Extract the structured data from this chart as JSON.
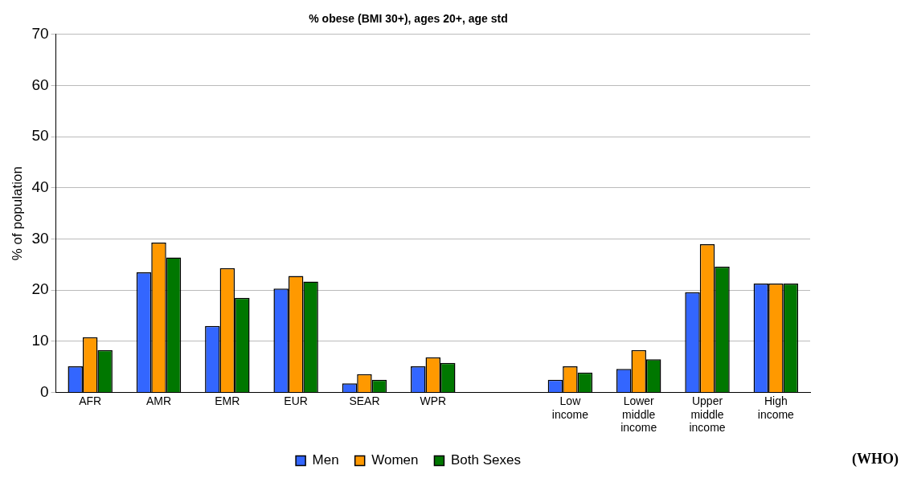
{
  "chart_data": {
    "type": "bar",
    "title": "% obese (BMI 30+), ages 20+, age std",
    "ylabel": "% of population",
    "categories": [
      "AFR",
      "AMR",
      "EMR",
      "EUR",
      "SEAR",
      "WPR",
      null,
      "Low income",
      "Lower middle income",
      "Upper middle income",
      "High income"
    ],
    "series": [
      {
        "name": "Men",
        "color": "#3366ff",
        "values": [
          5.1,
          23.5,
          13.0,
          20.3,
          1.8,
          5.1,
          null,
          2.5,
          4.6,
          19.6,
          21.3
        ]
      },
      {
        "name": "Women",
        "color": "#ff9900",
        "values": [
          10.8,
          29.3,
          24.3,
          22.8,
          3.6,
          6.9,
          null,
          5.1,
          8.3,
          29.0,
          21.3
        ]
      },
      {
        "name": "Both Sexes",
        "color": "#007700",
        "values": [
          8.3,
          26.4,
          18.5,
          21.7,
          2.5,
          5.8,
          null,
          3.9,
          6.5,
          24.6,
          21.3
        ]
      }
    ],
    "ylim": [
      0,
      70
    ],
    "yticks": [
      0,
      10,
      20,
      30,
      40,
      50,
      60,
      70
    ],
    "grid": "y",
    "legend": "bottom",
    "annotations": [
      "(WHO)"
    ]
  }
}
